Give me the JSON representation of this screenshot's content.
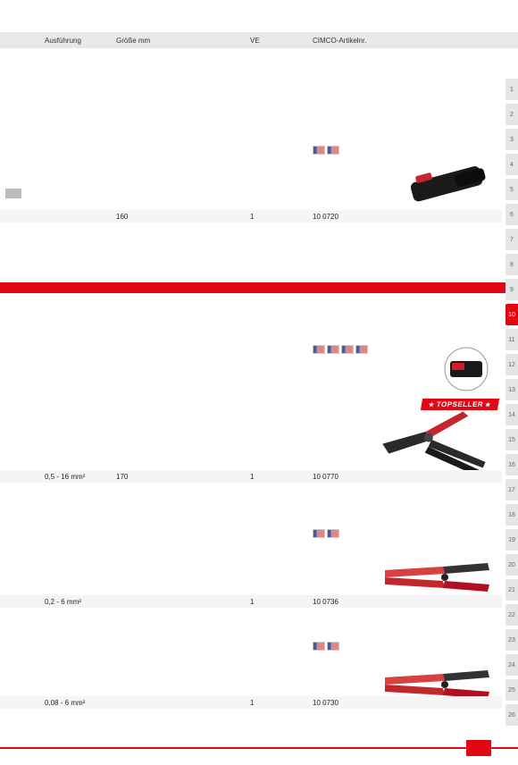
{
  "header": {
    "ausf": "Ausführung",
    "groesse": "Größe mm",
    "ve": "VE",
    "artikel": "CIMCO-Artikelnr."
  },
  "rows": [
    {
      "ausf": "",
      "groesse": "160",
      "ve": "1",
      "artikel": "10 0720"
    },
    {
      "ausf": "0,5 - 16 mm²",
      "groesse": "170",
      "ve": "1",
      "artikel": "10 0770"
    },
    {
      "ausf": "0,2 - 6 mm²",
      "groesse": "",
      "ve": "1",
      "artikel": "10 0736"
    },
    {
      "ausf": "0,08 - 6 mm²",
      "groesse": "",
      "ve": "1",
      "artikel": "10 0730"
    }
  ],
  "tabs": [
    "1",
    "2",
    "3",
    "4",
    "5",
    "6",
    "7",
    "8",
    "9",
    "10",
    "11",
    "12",
    "13",
    "14",
    "15",
    "16",
    "17",
    "18",
    "19",
    "20",
    "21",
    "22",
    "23",
    "24",
    "25",
    "26"
  ],
  "activeTab": "10",
  "topseller": "TOPSELLER",
  "colors": {
    "red": "#e30613",
    "grey": "#e5e5e5",
    "darkgrey": "#333",
    "tool1": "#1a1a1a",
    "tool2": "#2a2a2a",
    "tool3": "#d94040"
  }
}
